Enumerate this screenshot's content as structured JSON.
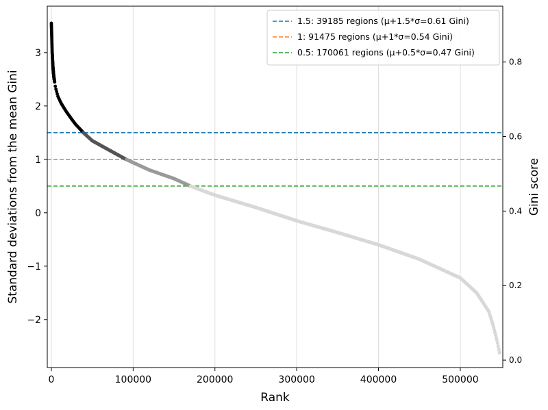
{
  "chart_data": {
    "type": "scatter",
    "title": "",
    "xlabel": "Rank",
    "ylabel": "Standard deviations from the mean Gini",
    "ylabel_right": "Gini score",
    "xlim": [
      -5000,
      552000
    ],
    "ylim": [
      -2.9,
      3.87
    ],
    "ylim_right": [
      -0.02,
      0.95
    ],
    "x_ticks": [
      0,
      100000,
      200000,
      300000,
      400000,
      500000
    ],
    "x_tick_labels": [
      "0",
      "100000",
      "200000",
      "300000",
      "400000",
      "500000"
    ],
    "y_ticks": [
      -2,
      -1,
      0,
      1,
      2,
      3
    ],
    "y_tick_labels": [
      "−2",
      "−1",
      "0",
      "1",
      "2",
      "3"
    ],
    "y_right_ticks": [
      0.0,
      0.2,
      0.4,
      0.6,
      0.8
    ],
    "y_right_tick_labels": [
      "0.0",
      "0.2",
      "0.4",
      "0.6",
      "0.8"
    ],
    "grid": {
      "x": true,
      "y": false
    },
    "legend_position": "top-right",
    "legend": [
      {
        "label": "1.5: 39185 regions (μ+1.5*σ=0.61 Gini)",
        "color": "#1f77b4"
      },
      {
        "label": "1: 91475 regions (μ+1*σ=0.54 Gini)",
        "color": "#ff7f0e"
      },
      {
        "label": "0.5: 170061 regions (μ+0.5*σ=0.47 Gini)",
        "color": "#2ca02c"
      }
    ],
    "thresholds": [
      {
        "sigma": 1.5,
        "rank_cutoff": 39185,
        "gini": 0.61,
        "color": "#1f77b4"
      },
      {
        "sigma": 1.0,
        "rank_cutoff": 91475,
        "gini": 0.54,
        "color": "#ff7f0e"
      },
      {
        "sigma": 0.5,
        "rank_cutoff": 170061,
        "gini": 0.47,
        "color": "#2ca02c"
      }
    ],
    "series": [
      {
        "values_description": "sorted standard deviations by rank",
        "x": [
          0,
          500,
          1000,
          2000,
          3000,
          5000,
          8000,
          12000,
          18000,
          25000,
          30000,
          39185,
          50000,
          70000,
          91475,
          120000,
          150000,
          170061,
          200000,
          250000,
          300000,
          350000,
          400000,
          450000,
          500000,
          520000,
          535000,
          540000,
          545000,
          548000
        ],
        "y": [
          3.55,
          3.3,
          3.0,
          2.72,
          2.55,
          2.35,
          2.18,
          2.05,
          1.9,
          1.75,
          1.65,
          1.5,
          1.35,
          1.18,
          1.0,
          0.8,
          0.64,
          0.5,
          0.33,
          0.1,
          -0.15,
          -0.37,
          -0.6,
          -0.87,
          -1.22,
          -1.5,
          -1.85,
          -2.1,
          -2.4,
          -2.62
        ]
      }
    ],
    "point_colors": {
      "above_1.5": "#000000",
      "above_1": "#555555",
      "above_0.5": "#9a9a9a",
      "rest": "#d8d8d8"
    }
  }
}
